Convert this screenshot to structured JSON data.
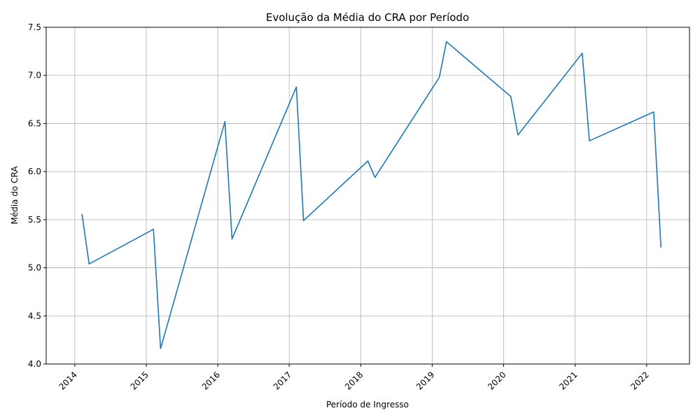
{
  "chart_data": {
    "type": "line",
    "title": "Evolução da Média do CRA por Período",
    "xlabel": "Período de Ingresso",
    "ylabel": "Média do CRA",
    "xlim": [
      2013.6,
      2022.6
    ],
    "ylim": [
      4.0,
      7.5
    ],
    "xticks": [
      2014,
      2015,
      2016,
      2017,
      2018,
      2019,
      2020,
      2021,
      2022
    ],
    "xtick_labels": [
      "2014",
      "2015",
      "2016",
      "2017",
      "2018",
      "2019",
      "2020",
      "2021",
      "2022"
    ],
    "yticks": [
      4.0,
      4.5,
      5.0,
      5.5,
      6.0,
      6.5,
      7.0,
      7.5
    ],
    "ytick_labels": [
      "4.0",
      "4.5",
      "5.0",
      "5.5",
      "6.0",
      "6.5",
      "7.0",
      "7.5"
    ],
    "grid": true,
    "line_color": "#1f77b4",
    "series": [
      {
        "x": [
          2014.1,
          2014.2,
          2015.1,
          2015.2,
          2016.1,
          2016.2,
          2017.1,
          2017.2,
          2018.1,
          2018.2,
          2019.1,
          2019.2,
          2020.1,
          2020.2,
          2021.1,
          2021.2,
          2022.1,
          2022.2
        ],
        "values": [
          5.56,
          5.04,
          5.4,
          4.16,
          6.52,
          5.3,
          6.88,
          5.49,
          6.11,
          5.94,
          6.98,
          7.35,
          6.78,
          6.38,
          7.23,
          6.32,
          6.62,
          5.21
        ]
      }
    ]
  }
}
